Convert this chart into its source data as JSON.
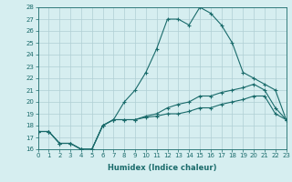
{
  "xlabel": "Humidex (Indice chaleur)",
  "ylabel": "",
  "bg_color": "#d6eef0",
  "line_color": "#1a6b6b",
  "grid_color": "#b0cfd4",
  "x_min": 0,
  "x_max": 23,
  "y_min": 16,
  "y_max": 28,
  "line1_x": [
    0,
    1,
    2,
    3,
    4,
    5,
    6,
    7,
    8,
    9,
    10,
    11,
    12,
    13,
    14,
    15,
    16,
    17,
    18,
    19,
    20,
    21,
    22,
    23
  ],
  "line1_y": [
    17.5,
    17.5,
    16.5,
    16.5,
    16.0,
    16.0,
    18.0,
    18.5,
    20.0,
    21.0,
    22.5,
    24.5,
    27.0,
    27.0,
    26.5,
    28.0,
    27.5,
    26.5,
    25.0,
    22.5,
    22.0,
    21.5,
    21.0,
    18.5
  ],
  "line2_x": [
    0,
    1,
    2,
    3,
    4,
    5,
    6,
    7,
    8,
    9,
    10,
    11,
    12,
    13,
    14,
    15,
    16,
    17,
    18,
    19,
    20,
    21,
    22,
    23
  ],
  "line2_y": [
    17.5,
    17.5,
    16.5,
    16.5,
    16.0,
    16.0,
    18.0,
    18.5,
    18.5,
    18.5,
    18.8,
    19.0,
    19.5,
    19.8,
    20.0,
    20.5,
    20.5,
    20.8,
    21.0,
    21.2,
    21.5,
    21.0,
    19.5,
    18.5
  ],
  "line3_x": [
    0,
    1,
    2,
    3,
    4,
    5,
    6,
    7,
    8,
    9,
    10,
    11,
    12,
    13,
    14,
    15,
    16,
    17,
    18,
    19,
    20,
    21,
    22,
    23
  ],
  "line3_y": [
    17.5,
    17.5,
    16.5,
    16.5,
    16.0,
    16.0,
    18.0,
    18.5,
    18.5,
    18.5,
    18.7,
    18.8,
    19.0,
    19.0,
    19.2,
    19.5,
    19.5,
    19.8,
    20.0,
    20.2,
    20.5,
    20.5,
    19.0,
    18.5
  ],
  "tick_fontsize": 5.0,
  "xlabel_fontsize": 6.0
}
